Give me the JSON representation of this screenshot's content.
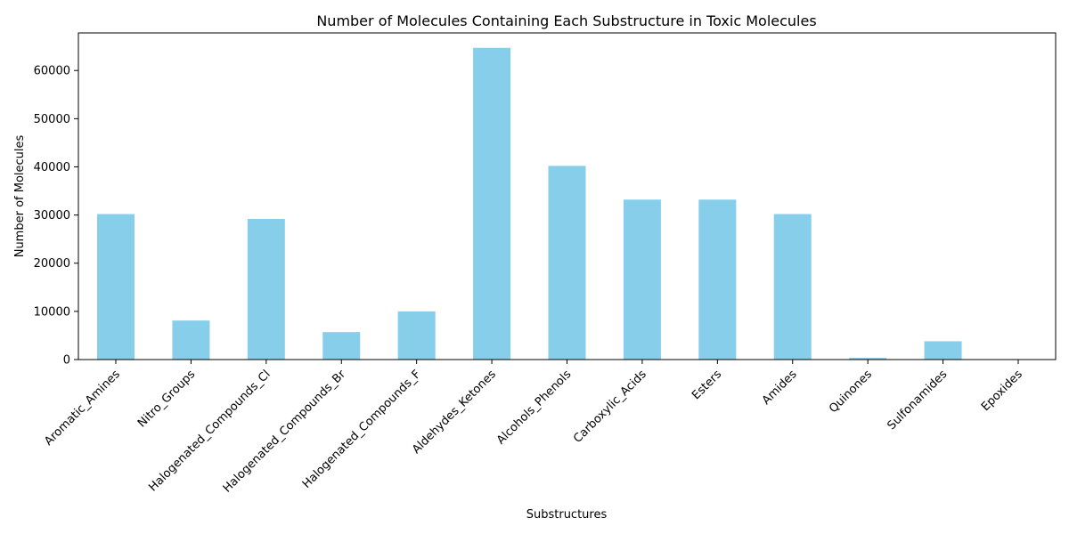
{
  "chart_data": {
    "type": "bar",
    "title": "Number of Molecules Containing Each Substructure in Toxic Molecules",
    "xlabel": "Substructures",
    "ylabel": "Number of Molecules",
    "categories": [
      "Aromatic_Amines",
      "Nitro_Groups",
      "Halogenated_Compounds_Cl",
      "Halogenated_Compounds_Br",
      "Halogenated_Compounds_F",
      "Aldehydes_Ketones",
      "Alcohols_Phenols",
      "Carboxylic_Acids",
      "Esters",
      "Amides",
      "Quinones",
      "Sulfonamides",
      "Epoxides"
    ],
    "values": [
      30200,
      8100,
      29200,
      5700,
      10000,
      64700,
      40200,
      33200,
      33200,
      30200,
      350,
      3800,
      30
    ],
    "ylim": [
      0,
      67800
    ],
    "yticks": [
      0,
      10000,
      20000,
      30000,
      40000,
      50000,
      60000
    ],
    "grid": false,
    "legend": "none",
    "bar_color": "#87CEEB"
  }
}
